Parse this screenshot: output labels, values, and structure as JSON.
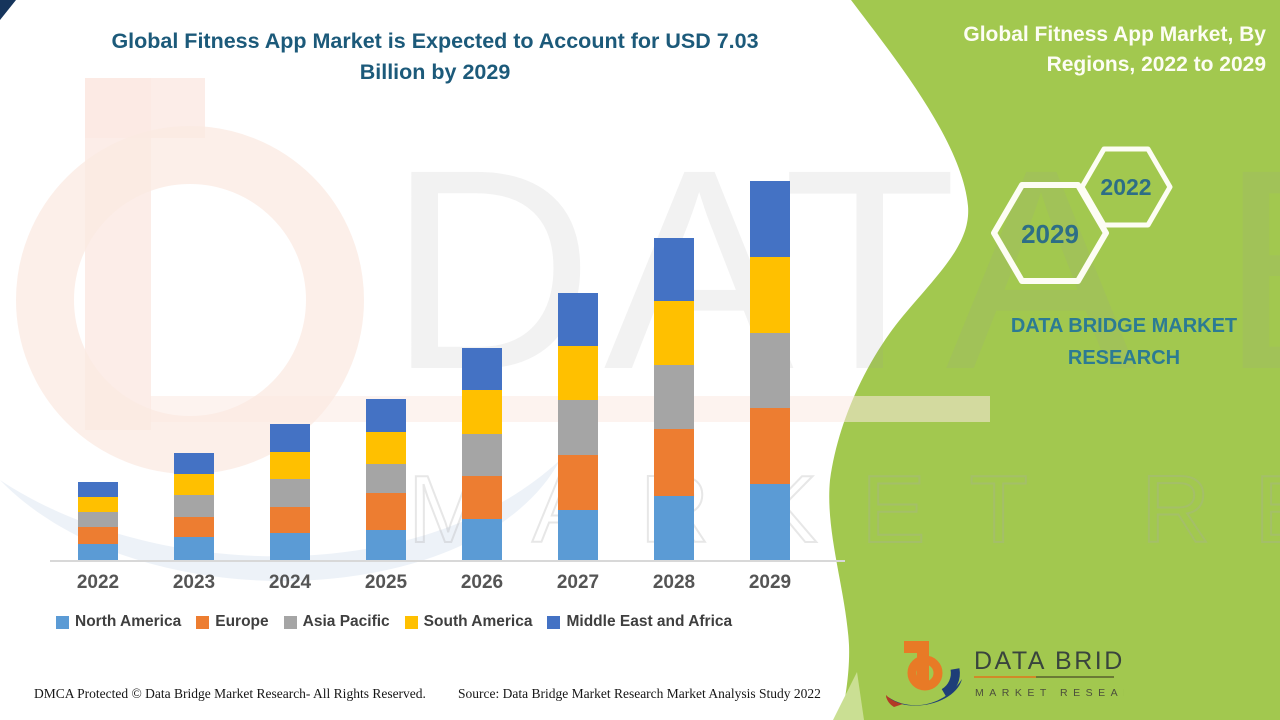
{
  "header": {
    "title_line1": "Global Fitness App Market is Expected to Account for USD 7.03",
    "title_line2": "Billion by 2029"
  },
  "side_panel": {
    "panel_color": "#a2c84f",
    "title_line1": "Global Fitness App Market, By",
    "title_line2": "Regions, 2022 to 2029",
    "hexagons": [
      {
        "label": "2022"
      },
      {
        "label": "2029"
      }
    ],
    "brand_line1": "DATA BRIDGE MARKET",
    "brand_line2": "RESEARCH",
    "accent_text_color": "#2c7b93"
  },
  "logo": {
    "text_line1": "DATA BRIDGE",
    "text_line2": "MARKET RESEARCH",
    "glyph_orange": "#e87a26",
    "glyph_navy": "#1e3e78",
    "glyph_red": "#b33a26"
  },
  "watermark": {
    "text1": "DATA BRIDGE",
    "text2": "MARKET RESEARCH"
  },
  "footer": {
    "left": "DMCA Protected © Data Bridge Market Research- All Rights Reserved.",
    "right": "Source: Data Bridge Market Research Market Analysis Study 2022"
  },
  "chart_data": {
    "type": "bar",
    "stacked": true,
    "unit": "USD billion",
    "title": "Global Fitness App Market, By Regions, 2022 to 2029",
    "categories": [
      "2022",
      "2023",
      "2024",
      "2025",
      "2026",
      "2027",
      "2028",
      "2029"
    ],
    "series": [
      {
        "name": "North America",
        "color": "#5B9BD5",
        "values": [
          0.3,
          0.42,
          0.5,
          0.56,
          0.76,
          0.93,
          1.19,
          1.41
        ]
      },
      {
        "name": "Europe",
        "color": "#ED7D31",
        "values": [
          0.31,
          0.37,
          0.48,
          0.69,
          0.8,
          1.02,
          1.24,
          1.41
        ]
      },
      {
        "name": "Asia Pacific",
        "color": "#A5A5A5",
        "values": [
          0.28,
          0.41,
          0.52,
          0.54,
          0.78,
          1.02,
          1.19,
          1.39
        ]
      },
      {
        "name": "South America",
        "color": "#FFC000",
        "values": [
          0.28,
          0.39,
          0.5,
          0.59,
          0.82,
          1.0,
          1.19,
          1.41
        ]
      },
      {
        "name": "Middle East and Africa",
        "color": "#4472C4",
        "values": [
          0.28,
          0.39,
          0.52,
          0.61,
          0.78,
          0.98,
          1.17,
          1.41
        ]
      }
    ],
    "totals": [
      1.45,
      1.98,
      2.52,
      2.99,
      3.94,
      4.95,
      5.98,
      7.03
    ],
    "ylim": [
      0,
      7.1
    ],
    "grid": false,
    "axis_labels_visible": "x-only",
    "legend_position": "bottom"
  }
}
